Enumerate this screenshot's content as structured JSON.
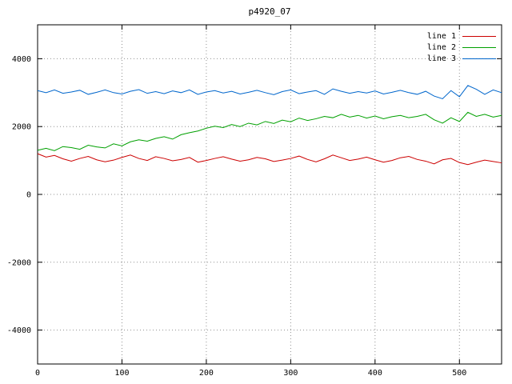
{
  "chart_data": {
    "type": "line",
    "title": "p4920_07",
    "xlabel": "",
    "ylabel": "",
    "xlim": [
      0,
      550
    ],
    "ylim": [
      -5000,
      5000
    ],
    "xticks": [
      0,
      100,
      200,
      300,
      400,
      500
    ],
    "yticks": [
      -4000,
      -2000,
      0,
      2000,
      4000
    ],
    "grid": true,
    "legend_position": "top-right",
    "x_step": 10,
    "series": [
      {
        "name": "line 1",
        "color": "#cc0000",
        "values": [
          1200,
          1100,
          1150,
          1050,
          980,
          1060,
          1120,
          1020,
          960,
          1010,
          1090,
          1160,
          1060,
          1000,
          1110,
          1060,
          990,
          1030,
          1090,
          950,
          1000,
          1060,
          1110,
          1040,
          980,
          1020,
          1090,
          1050,
          970,
          1010,
          1060,
          1130,
          1030,
          960,
          1050,
          1160,
          1080,
          1000,
          1040,
          1100,
          1020,
          950,
          1000,
          1080,
          1120,
          1030,
          980,
          900,
          1020,
          1060,
          940,
          880,
          950,
          1010,
          970,
          930
        ]
      },
      {
        "name": "line 2",
        "color": "#00a000",
        "values": [
          1300,
          1360,
          1290,
          1410,
          1380,
          1330,
          1450,
          1400,
          1370,
          1490,
          1430,
          1550,
          1610,
          1570,
          1650,
          1700,
          1630,
          1760,
          1820,
          1870,
          1950,
          2010,
          1970,
          2060,
          2000,
          2100,
          2050,
          2150,
          2090,
          2190,
          2140,
          2250,
          2180,
          2230,
          2300,
          2260,
          2360,
          2280,
          2330,
          2250,
          2310,
          2230,
          2290,
          2330,
          2260,
          2300,
          2360,
          2200,
          2100,
          2260,
          2150,
          2420,
          2300,
          2360,
          2280,
          2330
        ]
      },
      {
        "name": "line 3",
        "color": "#0066cc",
        "values": [
          3060,
          3000,
          3080,
          2980,
          3020,
          3070,
          2950,
          3010,
          3080,
          3000,
          2960,
          3040,
          3090,
          2980,
          3030,
          2970,
          3050,
          3000,
          3080,
          2950,
          3020,
          3060,
          2990,
          3040,
          2960,
          3010,
          3070,
          3000,
          2940,
          3030,
          3080,
          2970,
          3020,
          3060,
          2950,
          3110,
          3040,
          2980,
          3030,
          2990,
          3050,
          2960,
          3010,
          3070,
          3000,
          2950,
          3040,
          2900,
          2820,
          3060,
          2880,
          3210,
          3100,
          2950,
          3080,
          3000
        ]
      }
    ],
    "style": {
      "border_color": "#000000",
      "grid_color": "#909090",
      "background": "#ffffff"
    }
  }
}
